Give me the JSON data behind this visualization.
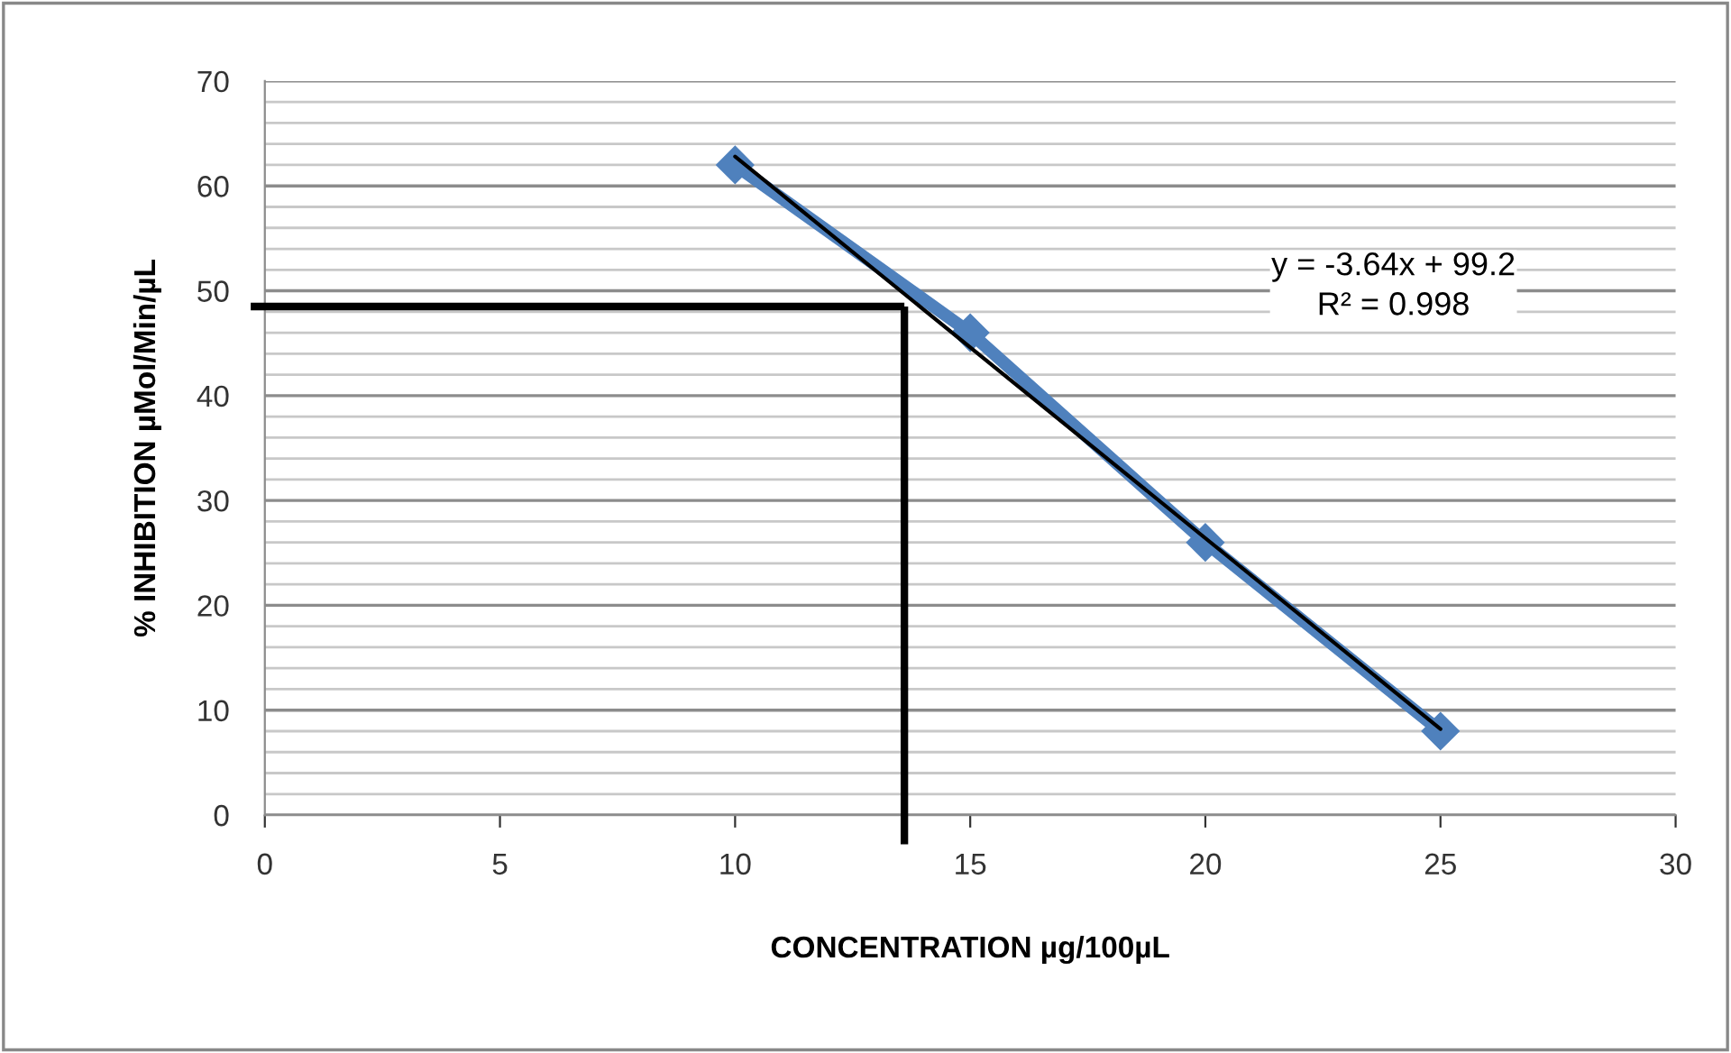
{
  "chart_data": {
    "type": "line",
    "xlabel": "CONCENTRATION µg/100µL",
    "ylabel": "% INHIBITION µMol/Min/µL",
    "series": [
      {
        "x": [
          10,
          15,
          20,
          25
        ],
        "values": [
          62,
          46,
          26,
          8
        ],
        "color": "#4f81bd",
        "marker": "diamond",
        "line_style": "solid"
      },
      {
        "type": "line",
        "x": [
          10,
          25
        ],
        "values": [
          62.8,
          8.2
        ],
        "color": "#000000",
        "marker": "none",
        "line_style": "solid"
      }
    ],
    "annotations": [
      "y = -3.64x + 99.2\nR² = 0.998"
    ],
    "ref_lines": [
      {
        "axis": "y",
        "value": 48.5,
        "color": "#000000"
      },
      {
        "axis": "x",
        "value": 13.6,
        "color": "#000000"
      }
    ],
    "xlim": [
      0,
      30
    ],
    "xticks": [
      0,
      5,
      10,
      15,
      20,
      25,
      30
    ],
    "ylim": [
      0,
      70
    ],
    "yticks": [
      0,
      10,
      20,
      30,
      40,
      50,
      60,
      70
    ],
    "grid": "y"
  }
}
